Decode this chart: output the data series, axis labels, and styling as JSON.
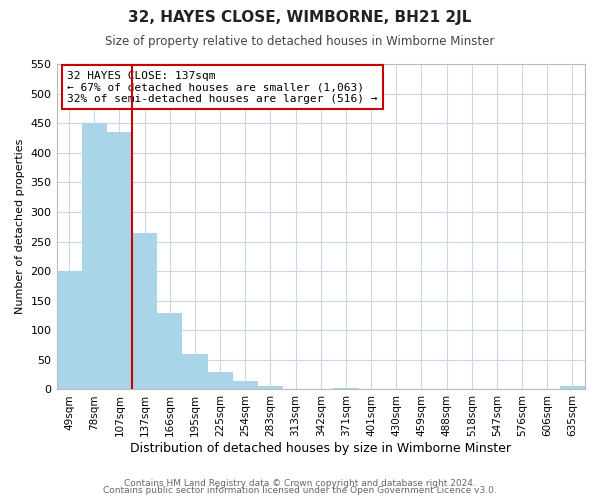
{
  "title": "32, HAYES CLOSE, WIMBORNE, BH21 2JL",
  "subtitle": "Size of property relative to detached houses in Wimborne Minster",
  "xlabel": "Distribution of detached houses by size in Wimborne Minster",
  "ylabel": "Number of detached properties",
  "footer_line1": "Contains HM Land Registry data © Crown copyright and database right 2024.",
  "footer_line2": "Contains public sector information licensed under the Open Government Licence v3.0.",
  "annotation_title": "32 HAYES CLOSE: 137sqm",
  "annotation_line2": "← 67% of detached houses are smaller (1,063)",
  "annotation_line3": "32% of semi-detached houses are larger (516) →",
  "bar_labels": [
    "49sqm",
    "78sqm",
    "107sqm",
    "137sqm",
    "166sqm",
    "195sqm",
    "225sqm",
    "254sqm",
    "283sqm",
    "313sqm",
    "342sqm",
    "371sqm",
    "401sqm",
    "430sqm",
    "459sqm",
    "488sqm",
    "518sqm",
    "547sqm",
    "576sqm",
    "606sqm",
    "635sqm"
  ],
  "bar_values": [
    200,
    450,
    435,
    265,
    130,
    60,
    30,
    15,
    5,
    0,
    0,
    3,
    0,
    0,
    0,
    0,
    0,
    0,
    0,
    0,
    5
  ],
  "bar_color": "#aad4e8",
  "vline_color": "#cc0000",
  "vline_index": 2.5,
  "ylim": [
    0,
    550
  ],
  "yticks": [
    0,
    50,
    100,
    150,
    200,
    250,
    300,
    350,
    400,
    450,
    500,
    550
  ],
  "background_color": "#ffffff",
  "grid_color": "#c8d8e8",
  "annotation_box_facecolor": "#ffffff",
  "annotation_box_edgecolor": "#cc0000",
  "title_fontsize": 11,
  "subtitle_fontsize": 8.5,
  "ylabel_fontsize": 8,
  "xlabel_fontsize": 9,
  "tick_fontsize": 7.5,
  "ytick_fontsize": 8,
  "annotation_fontsize": 8,
  "footer_fontsize": 6.5
}
